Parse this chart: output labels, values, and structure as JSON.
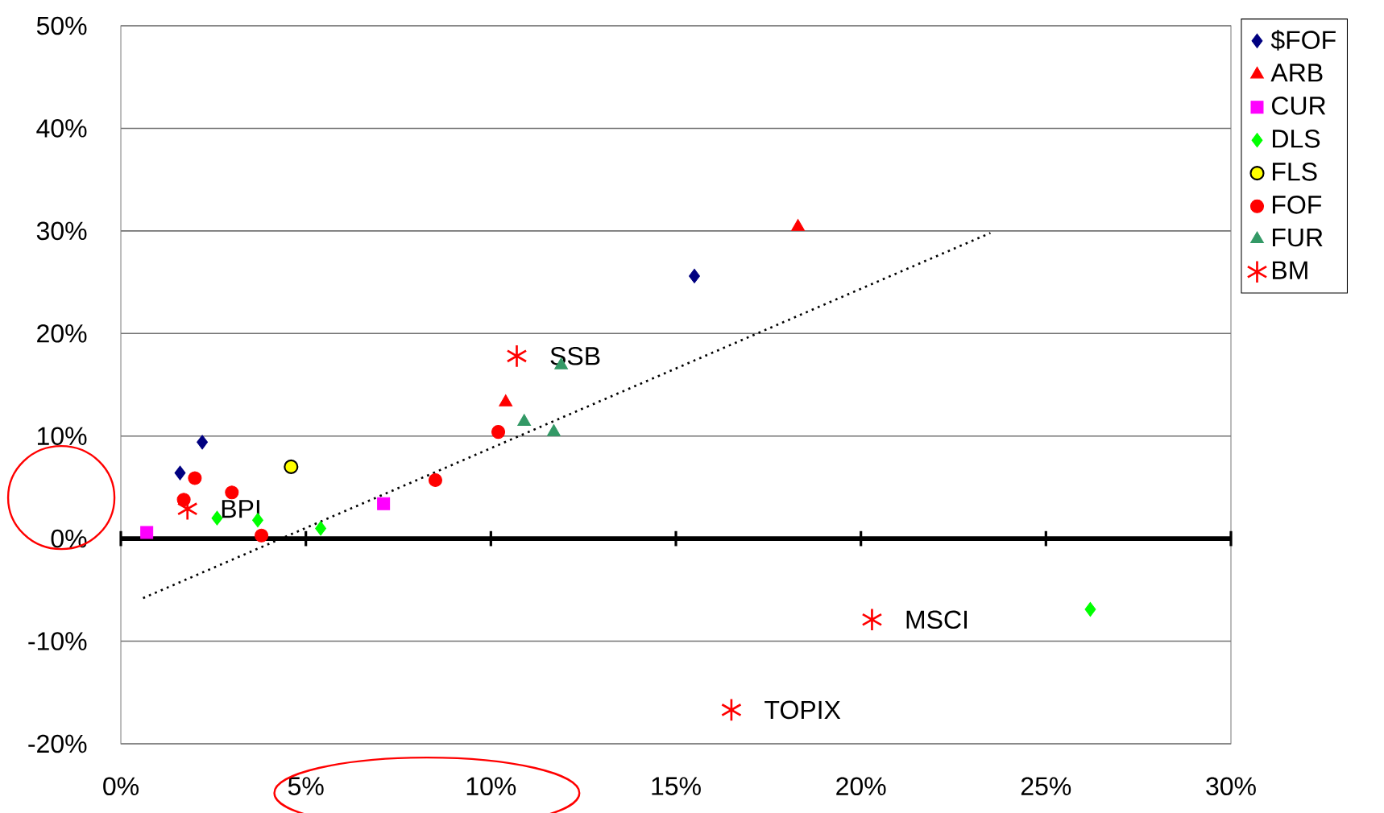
{
  "chart_data": {
    "type": "scatter",
    "series": [
      {
        "name": "$FOF",
        "color": "#000080",
        "marker": "diamond",
        "x": [
          1.6,
          2.2,
          15.5
        ],
        "values": [
          6.4,
          9.4,
          25.6
        ]
      },
      {
        "name": "ARB",
        "color": "#ff0000",
        "marker": "triangle",
        "x": [
          10.4,
          18.3
        ],
        "values": [
          13.3,
          30.4
        ]
      },
      {
        "name": "CUR",
        "color": "#ff00ff",
        "marker": "square",
        "x": [
          0.7,
          7.1
        ],
        "values": [
          0.6,
          3.4
        ]
      },
      {
        "name": "DLS",
        "color": "#00ff00",
        "marker": "diamond",
        "x": [
          2.6,
          3.7,
          5.4,
          26.2
        ],
        "values": [
          2.0,
          1.8,
          1.0,
          -6.9
        ]
      },
      {
        "name": "FLS",
        "color": "#ffff00",
        "marker": "circle",
        "x": [
          4.6
        ],
        "values": [
          7.0
        ]
      },
      {
        "name": "FOF",
        "color": "#ff0000",
        "marker": "circle",
        "x": [
          2.0,
          1.7,
          3.0,
          3.8,
          8.5,
          10.2
        ],
        "values": [
          5.9,
          3.8,
          4.5,
          0.3,
          5.7,
          10.4
        ]
      },
      {
        "name": "FUR",
        "color": "#339966",
        "marker": "triangle",
        "x": [
          10.9,
          11.7,
          11.9
        ],
        "values": [
          11.4,
          10.4,
          16.9
        ]
      },
      {
        "name": "BM",
        "color": "#ff0000",
        "marker": "cross",
        "x": [
          1.8,
          10.7,
          20.3,
          16.5
        ],
        "values": [
          2.9,
          17.8,
          -7.9,
          -16.7
        ]
      },
      {
        "type": "line",
        "color": "#000000",
        "marker": "none",
        "line_style": "dotted",
        "x": [
          0.6,
          23.5
        ],
        "values": [
          -5.8,
          29.8
        ]
      }
    ],
    "annotations": [
      {
        "text": "BPI",
        "x": 1.8,
        "y": 2.9
      },
      {
        "text": "SSB",
        "x": 10.7,
        "y": 17.8
      },
      {
        "text": "MSCI",
        "x": 20.3,
        "y": -7.9
      },
      {
        "text": "TOPIX",
        "x": 16.5,
        "y": -16.7
      }
    ],
    "xlim": [
      0,
      30
    ],
    "ylim": [
      -20,
      50
    ],
    "xticks": [
      {
        "value": 0,
        "label": "0%"
      },
      {
        "value": 5,
        "label": "5%"
      },
      {
        "value": 10,
        "label": "10%"
      },
      {
        "value": 15,
        "label": "15%"
      },
      {
        "value": 20,
        "label": "20%"
      },
      {
        "value": 25,
        "label": "25%"
      },
      {
        "value": 30,
        "label": "30%"
      }
    ],
    "yticks": [
      {
        "value": -20,
        "label": "-20%"
      },
      {
        "value": -10,
        "label": "-10%"
      },
      {
        "value": 0,
        "label": "0%"
      },
      {
        "value": 10,
        "label": "10%"
      },
      {
        "value": 20,
        "label": "20%"
      },
      {
        "value": 30,
        "label": "30%"
      },
      {
        "value": 40,
        "label": "40%"
      },
      {
        "value": 50,
        "label": "50%"
      }
    ],
    "ref_lines": [
      {
        "axis": "y",
        "value": 0,
        "color": "#000000"
      }
    ],
    "grid": "y",
    "legend": "top right"
  }
}
